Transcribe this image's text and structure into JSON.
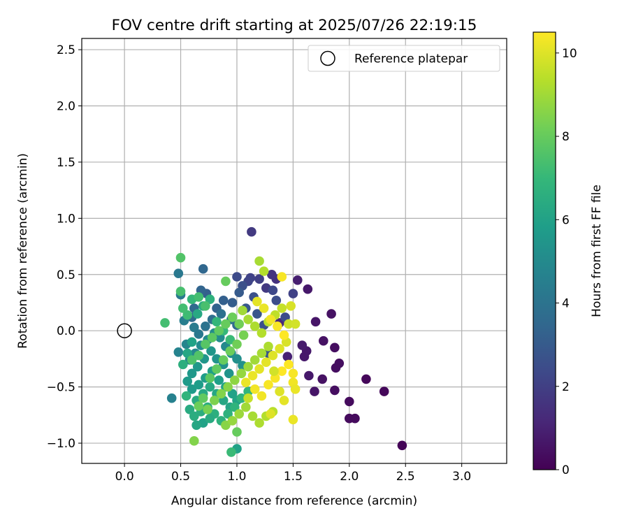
{
  "chart_data": {
    "type": "scatter",
    "title": "FOV centre drift starting at 2025/07/26 22:19:15",
    "xlabel": "Angular distance from reference (arcmin)",
    "ylabel": "Rotation from reference (arcmin)",
    "xlim": [
      -0.38,
      3.4
    ],
    "ylim": [
      -1.18,
      2.6
    ],
    "x_ticks": [
      0.0,
      0.5,
      1.0,
      1.5,
      2.0,
      2.5,
      3.0
    ],
    "x_tick_labels": [
      "0.0",
      "0.5",
      "1.0",
      "1.5",
      "2.0",
      "2.5",
      "3.0"
    ],
    "y_ticks": [
      -1.0,
      -0.5,
      0.0,
      0.5,
      1.0,
      1.5,
      2.0,
      2.5
    ],
    "y_tick_labels": [
      "−1.0",
      "−0.5",
      "0.0",
      "0.5",
      "1.0",
      "1.5",
      "2.0",
      "2.5"
    ],
    "grid": true,
    "legend": {
      "position": "top-right",
      "entries": [
        "Reference platepar"
      ]
    },
    "reference_point": {
      "x": 0.0,
      "y": 0.0
    },
    "colorbar": {
      "label": "Hours from first FF file",
      "min": 0,
      "max": 10.5,
      "ticks": [
        0,
        2,
        4,
        6,
        8,
        10
      ],
      "tick_labels": [
        "0",
        "2",
        "4",
        "6",
        "8",
        "10"
      ],
      "colormap": "viridis",
      "colors": [
        "#440154",
        "#482878",
        "#3e4989",
        "#31688e",
        "#26828e",
        "#1f9e89",
        "#35b779",
        "#6ece58",
        "#b5de2b",
        "#fde725"
      ]
    },
    "series": [
      {
        "points": [
          [
            2.47,
            -1.02,
            0.1
          ],
          [
            2.31,
            -0.54,
            0.2
          ],
          [
            2.15,
            -0.43,
            0.2
          ],
          [
            2.05,
            -0.78,
            0.3
          ],
          [
            2.0,
            -0.78,
            0.3
          ],
          [
            2.0,
            -0.63,
            0.3
          ],
          [
            1.91,
            -0.29,
            0.4
          ],
          [
            1.88,
            -0.33,
            0.4
          ],
          [
            1.87,
            -0.15,
            0.4
          ],
          [
            1.87,
            -0.53,
            0.4
          ],
          [
            1.84,
            0.15,
            0.5
          ],
          [
            1.77,
            -0.09,
            0.5
          ],
          [
            1.76,
            -0.43,
            0.5
          ],
          [
            1.7,
            0.08,
            0.6
          ],
          [
            1.69,
            -0.54,
            0.6
          ],
          [
            1.64,
            -0.4,
            0.7
          ],
          [
            1.63,
            0.37,
            0.7
          ],
          [
            1.62,
            -0.18,
            0.7
          ],
          [
            1.6,
            -0.23,
            0.7
          ],
          [
            1.58,
            -0.13,
            0.8
          ],
          [
            1.54,
            0.45,
            0.9
          ],
          [
            1.45,
            -0.23,
            1.0
          ],
          [
            1.38,
            0.07,
            1.2
          ],
          [
            1.35,
            0.46,
            1.5
          ],
          [
            1.31,
            0.5,
            1.6
          ],
          [
            1.26,
            0.38,
            1.8
          ],
          [
            1.13,
            0.88,
            1.8
          ],
          [
            1.2,
            0.46,
            2.0
          ],
          [
            1.12,
            0.47,
            2.1
          ],
          [
            1.1,
            0.44,
            2.2
          ],
          [
            1.0,
            0.48,
            2.4
          ],
          [
            1.05,
            0.4,
            2.6
          ],
          [
            1.15,
            0.3,
            2.6
          ],
          [
            1.32,
            0.36,
            2.3
          ],
          [
            1.43,
            0.12,
            2.4
          ],
          [
            1.5,
            0.33,
            2.1
          ],
          [
            1.35,
            0.27,
            2.5
          ],
          [
            1.28,
            -0.2,
            2.8
          ],
          [
            1.24,
            0.05,
            2.6
          ],
          [
            1.18,
            0.15,
            2.8
          ],
          [
            1.08,
            0.2,
            2.9
          ],
          [
            1.02,
            0.34,
            3.0
          ],
          [
            0.96,
            0.25,
            3.1
          ],
          [
            0.88,
            0.27,
            3.2
          ],
          [
            0.82,
            0.2,
            3.3
          ],
          [
            0.73,
            0.33,
            3.2
          ],
          [
            0.7,
            0.55,
            3.5
          ],
          [
            0.68,
            0.36,
            3.4
          ],
          [
            0.62,
            0.2,
            3.6
          ],
          [
            0.6,
            0.12,
            3.7
          ],
          [
            0.48,
            0.51,
            4.2
          ],
          [
            0.5,
            0.32,
            4.3
          ],
          [
            0.53,
            0.09,
            4.5
          ],
          [
            0.62,
            0.03,
            4.4
          ],
          [
            0.66,
            -0.03,
            4.2
          ],
          [
            0.72,
            0.04,
            4.0
          ],
          [
            0.78,
            0.1,
            3.8
          ],
          [
            0.86,
            0.15,
            3.9
          ],
          [
            0.95,
            0.1,
            4.0
          ],
          [
            1.0,
            0.05,
            3.6
          ],
          [
            0.42,
            -0.6,
            4.6
          ],
          [
            0.48,
            -0.19,
            4.7
          ],
          [
            0.55,
            -0.12,
            4.8
          ],
          [
            0.58,
            -0.26,
            4.9
          ],
          [
            0.63,
            -0.2,
            4.9
          ],
          [
            0.68,
            -0.13,
            5.0
          ],
          [
            0.74,
            -0.08,
            5.0
          ],
          [
            0.8,
            -0.02,
            5.1
          ],
          [
            0.85,
            -0.06,
            5.1
          ],
          [
            0.9,
            -0.14,
            5.0
          ],
          [
            0.95,
            -0.2,
            5.2
          ],
          [
            1.0,
            -0.25,
            5.2
          ],
          [
            1.05,
            -0.31,
            5.3
          ],
          [
            0.93,
            -0.38,
            5.4
          ],
          [
            0.88,
            -0.3,
            5.3
          ],
          [
            0.82,
            -0.25,
            5.4
          ],
          [
            0.77,
            -0.18,
            5.5
          ],
          [
            0.71,
            -0.25,
            5.5
          ],
          [
            0.65,
            -0.32,
            5.6
          ],
          [
            0.6,
            -0.38,
            5.6
          ],
          [
            0.56,
            -0.45,
            5.7
          ],
          [
            0.6,
            -0.52,
            5.7
          ],
          [
            0.66,
            -0.48,
            5.8
          ],
          [
            0.72,
            -0.42,
            5.8
          ],
          [
            0.78,
            -0.36,
            5.9
          ],
          [
            0.84,
            -0.44,
            5.9
          ],
          [
            0.9,
            -0.5,
            6.0
          ],
          [
            0.96,
            -0.56,
            6.0
          ],
          [
            1.0,
            -0.62,
            6.1
          ],
          [
            0.94,
            -0.68,
            6.1
          ],
          [
            0.88,
            -0.62,
            6.2
          ],
          [
            0.82,
            -0.56,
            6.2
          ],
          [
            0.76,
            -0.5,
            6.3
          ],
          [
            0.7,
            -0.56,
            6.3
          ],
          [
            0.64,
            -0.62,
            6.4
          ],
          [
            0.58,
            -0.7,
            6.4
          ],
          [
            0.62,
            -0.76,
            6.5
          ],
          [
            0.68,
            -0.72,
            6.5
          ],
          [
            0.74,
            -0.68,
            6.6
          ],
          [
            0.8,
            -0.74,
            6.6
          ],
          [
            0.86,
            -0.8,
            6.7
          ],
          [
            0.92,
            -0.74,
            6.7
          ],
          [
            0.98,
            -0.68,
            6.8
          ],
          [
            1.04,
            -0.6,
            6.8
          ],
          [
            1.1,
            -0.54,
            6.9
          ],
          [
            1.0,
            -1.05,
            6.0
          ],
          [
            0.95,
            -1.08,
            7.1
          ],
          [
            0.7,
            -0.82,
            6.0
          ],
          [
            0.64,
            -0.84,
            6.2
          ],
          [
            0.76,
            -0.78,
            6.4
          ],
          [
            0.55,
            -0.58,
            6.8
          ],
          [
            0.52,
            -0.3,
            6.6
          ],
          [
            0.56,
            -0.2,
            6.2
          ],
          [
            0.6,
            -0.1,
            6.0
          ],
          [
            0.65,
            0.15,
            6.3
          ],
          [
            0.7,
            0.22,
            6.5
          ],
          [
            0.76,
            0.28,
            6.7
          ],
          [
            0.82,
            0.08,
            6.9
          ],
          [
            0.88,
            0.0,
            7.0
          ],
          [
            0.94,
            -0.08,
            7.1
          ],
          [
            0.6,
            0.28,
            7.0
          ],
          [
            0.56,
            0.14,
            7.2
          ],
          [
            0.52,
            0.2,
            7.3
          ],
          [
            0.66,
            0.3,
            7.3
          ],
          [
            0.72,
            0.22,
            7.4
          ],
          [
            0.5,
            0.65,
            7.6
          ],
          [
            0.5,
            0.35,
            7.4
          ],
          [
            0.36,
            0.07,
            7.3
          ],
          [
            0.6,
            -0.26,
            7.5
          ],
          [
            0.66,
            -0.22,
            7.6
          ],
          [
            0.72,
            -0.12,
            7.7
          ],
          [
            0.78,
            -0.06,
            7.8
          ],
          [
            0.84,
            0.0,
            7.9
          ],
          [
            0.9,
            0.06,
            8.0
          ],
          [
            0.96,
            0.12,
            8.1
          ],
          [
            0.9,
            0.44,
            8.0
          ],
          [
            1.02,
            0.06,
            8.2
          ],
          [
            1.06,
            -0.04,
            8.3
          ],
          [
            1.0,
            -0.12,
            8.2
          ],
          [
            0.94,
            -0.18,
            8.1
          ],
          [
            0.88,
            -0.26,
            8.0
          ],
          [
            0.82,
            -0.34,
            7.9
          ],
          [
            0.76,
            -0.42,
            7.8
          ],
          [
            0.7,
            -0.6,
            7.9
          ],
          [
            0.66,
            -0.67,
            8.1
          ],
          [
            0.74,
            -0.7,
            8.3
          ],
          [
            0.8,
            -0.62,
            8.4
          ],
          [
            0.86,
            -0.56,
            8.5
          ],
          [
            0.92,
            -0.5,
            8.6
          ],
          [
            0.98,
            -0.44,
            8.7
          ],
          [
            1.04,
            -0.38,
            8.8
          ],
          [
            1.1,
            -0.32,
            8.9
          ],
          [
            1.16,
            -0.26,
            9.0
          ],
          [
            1.22,
            -0.2,
            9.1
          ],
          [
            1.28,
            -0.14,
            9.2
          ],
          [
            0.9,
            -0.84,
            8.6
          ],
          [
            0.96,
            -0.8,
            8.8
          ],
          [
            1.02,
            -0.74,
            8.9
          ],
          [
            1.08,
            -0.68,
            9.0
          ],
          [
            1.14,
            -0.76,
            9.1
          ],
          [
            1.2,
            -0.82,
            9.2
          ],
          [
            1.26,
            -0.76,
            9.3
          ],
          [
            1.32,
            -0.72,
            9.4
          ],
          [
            0.62,
            -0.98,
            8.5
          ],
          [
            1.0,
            -0.9,
            8.0
          ],
          [
            1.2,
            0.62,
            9.1
          ],
          [
            1.24,
            0.53,
            9.3
          ],
          [
            1.05,
            0.18,
            9.0
          ],
          [
            1.1,
            0.1,
            9.1
          ],
          [
            1.16,
            0.04,
            9.2
          ],
          [
            1.22,
            -0.02,
            9.3
          ],
          [
            1.28,
            0.08,
            9.4
          ],
          [
            1.34,
            0.14,
            9.5
          ],
          [
            1.4,
            0.2,
            9.6
          ],
          [
            1.46,
            0.06,
            9.7
          ],
          [
            1.52,
            0.06,
            9.8
          ],
          [
            1.48,
            0.22,
            9.9
          ],
          [
            1.44,
            -0.1,
            9.9
          ],
          [
            1.38,
            -0.16,
            10.0
          ],
          [
            1.32,
            -0.22,
            10.0
          ],
          [
            1.26,
            -0.28,
            10.1
          ],
          [
            1.2,
            -0.34,
            10.1
          ],
          [
            1.14,
            -0.4,
            10.2
          ],
          [
            1.08,
            -0.46,
            10.2
          ],
          [
            1.16,
            -0.52,
            10.3
          ],
          [
            1.22,
            -0.58,
            10.3
          ],
          [
            1.28,
            -0.48,
            10.4
          ],
          [
            1.34,
            -0.42,
            10.4
          ],
          [
            1.4,
            -0.36,
            10.5
          ],
          [
            1.46,
            -0.3,
            10.5
          ],
          [
            1.5,
            -0.38,
            10.4
          ],
          [
            1.5,
            -0.46,
            10.3
          ],
          [
            1.52,
            -0.52,
            10.2
          ],
          [
            1.42,
            -0.62,
            10.1
          ],
          [
            1.38,
            -0.54,
            10.0
          ],
          [
            1.5,
            -0.79,
            10.2
          ],
          [
            1.3,
            -0.74,
            10.0
          ],
          [
            1.18,
            0.26,
            10.1
          ],
          [
            1.24,
            0.2,
            10.2
          ],
          [
            1.3,
            0.1,
            10.3
          ],
          [
            1.36,
            0.04,
            10.4
          ],
          [
            1.42,
            -0.04,
            10.5
          ],
          [
            1.4,
            0.48,
            10.4
          ],
          [
            1.33,
            -0.36,
            9.8
          ],
          [
            1.1,
            -0.6,
            9.6
          ]
        ]
      }
    ]
  }
}
